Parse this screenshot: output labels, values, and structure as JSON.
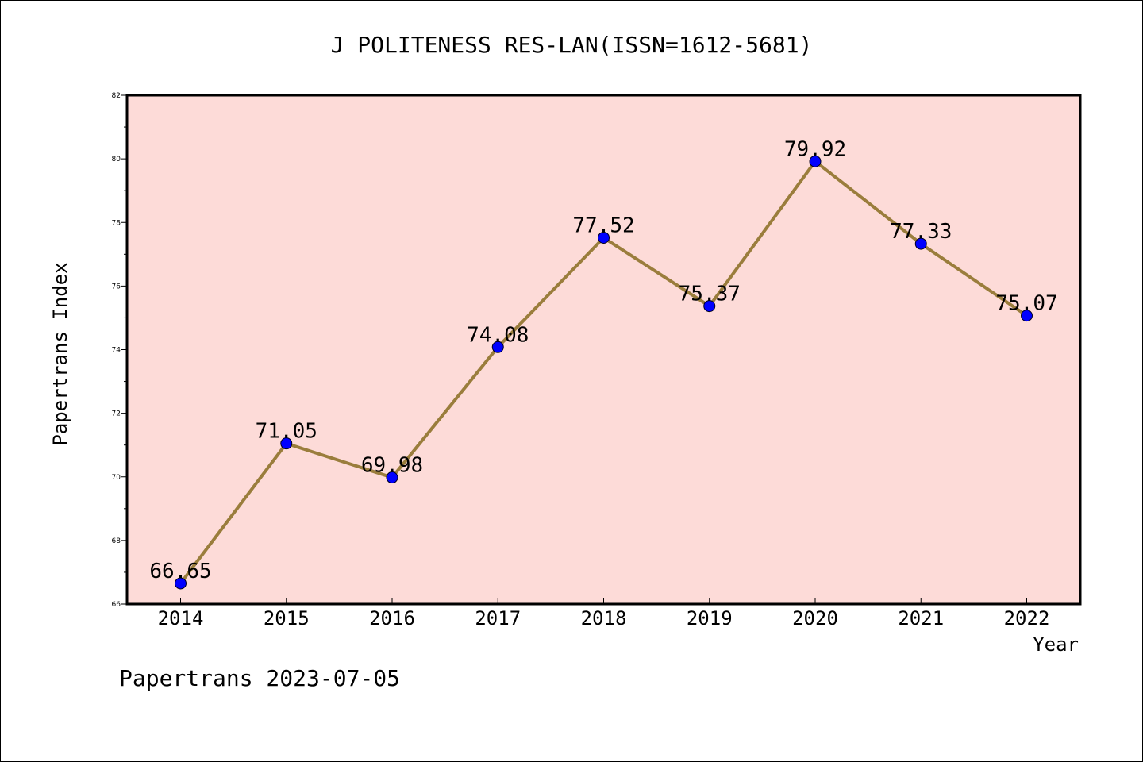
{
  "chart_data": {
    "type": "line",
    "title": "J POLITENESS RES-LAN(ISSN=1612-5681)",
    "xlabel": "Year",
    "ylabel": "Papertrans Index",
    "categories": [
      "2014",
      "2015",
      "2016",
      "2017",
      "2018",
      "2019",
      "2020",
      "2021",
      "2022"
    ],
    "values": [
      66.65,
      71.05,
      69.98,
      74.08,
      77.52,
      75.37,
      79.92,
      77.33,
      75.07
    ],
    "data_labels": [
      "66.65",
      "71.05",
      "69.98",
      "74.08",
      "77.52",
      "75.37",
      "79.92",
      "77.33",
      "75.07"
    ],
    "ylim": [
      66,
      82
    ],
    "yticks": [
      66,
      68,
      70,
      72,
      74,
      76,
      78,
      80,
      82
    ],
    "ytick_labels": [
      "66",
      "68",
      "70",
      "72",
      "74",
      "76",
      "78",
      "80",
      "82"
    ],
    "grid": false,
    "legend": "none",
    "colors": {
      "plot_background": "#fddbd8",
      "line": "#9a7d3c",
      "marker": "#0000ff"
    }
  },
  "footer": {
    "text": "Papertrans 2023-07-05"
  }
}
